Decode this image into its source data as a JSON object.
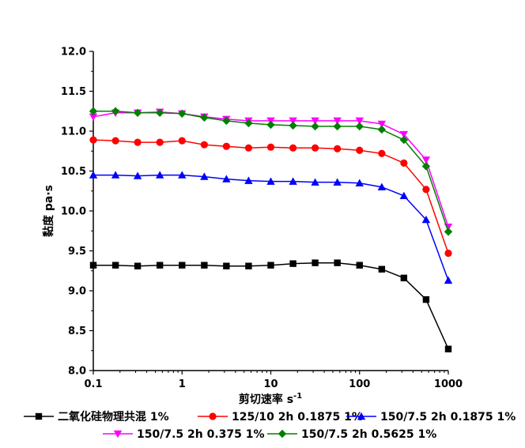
{
  "chart_data": {
    "type": "line",
    "xlabel": "剪切速率 s",
    "xlabel_sup": "-1",
    "ylabel": "黏度 pa·s",
    "x_scale": "log",
    "xlim": [
      0.1,
      1000
    ],
    "ylim": [
      8.0,
      12.0
    ],
    "x_ticks": [
      "0.1",
      "1",
      "10",
      "100",
      "1000"
    ],
    "y_ticks": [
      "8.0",
      "8.5",
      "9.0",
      "9.5",
      "10.0",
      "10.5",
      "11.0",
      "11.5",
      "12.0"
    ],
    "grid": false,
    "legend_position": "bottom",
    "x": [
      0.1,
      0.178,
      0.316,
      0.562,
      1,
      1.78,
      3.16,
      5.62,
      10,
      17.8,
      31.6,
      56.2,
      100,
      178,
      316,
      562,
      1000
    ],
    "series": [
      {
        "name": "二氧化硅物理共混 1%",
        "color": "#000000",
        "marker": "square",
        "values": [
          9.32,
          9.32,
          9.31,
          9.32,
          9.32,
          9.32,
          9.31,
          9.31,
          9.32,
          9.34,
          9.35,
          9.35,
          9.32,
          9.27,
          9.16,
          8.89,
          8.27
        ]
      },
      {
        "name": "125/10 2h 0.1875 1%",
        "color": "#ff0000",
        "marker": "circle",
        "values": [
          10.89,
          10.88,
          10.86,
          10.86,
          10.88,
          10.83,
          10.81,
          10.79,
          10.8,
          10.79,
          10.79,
          10.78,
          10.76,
          10.72,
          10.6,
          10.27,
          9.47
        ]
      },
      {
        "name": "150/7.5 2h 0.1875 1%",
        "color": "#0000ff",
        "marker": "triangle-up",
        "values": [
          10.45,
          10.45,
          10.44,
          10.45,
          10.45,
          10.43,
          10.4,
          10.38,
          10.37,
          10.37,
          10.36,
          10.36,
          10.35,
          10.3,
          10.19,
          9.89,
          9.13
        ]
      },
      {
        "name": "150/7.5 2h 0.375 1%",
        "color": "#ff00ff",
        "marker": "triangle-down",
        "values": [
          11.18,
          11.23,
          11.23,
          11.24,
          11.22,
          11.18,
          11.15,
          11.13,
          11.13,
          11.13,
          11.13,
          11.13,
          11.13,
          11.09,
          10.96,
          10.64,
          9.8
        ]
      },
      {
        "name": "150/7.5 2h 0.5625 1%",
        "color": "#008000",
        "marker": "diamond",
        "values": [
          11.25,
          11.25,
          11.23,
          11.23,
          11.22,
          11.17,
          11.13,
          11.1,
          11.08,
          11.07,
          11.06,
          11.06,
          11.06,
          11.02,
          10.89,
          10.56,
          9.74
        ]
      }
    ]
  }
}
